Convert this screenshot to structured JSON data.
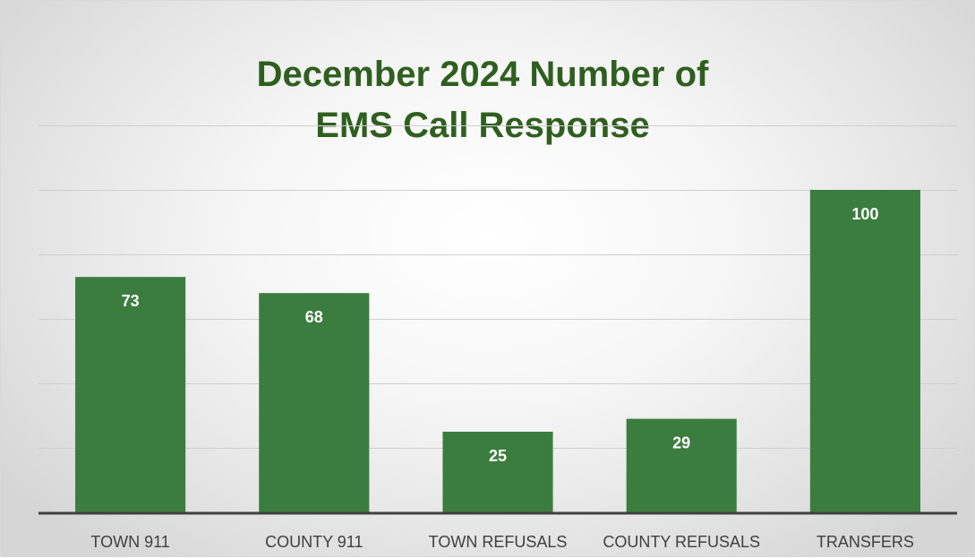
{
  "chart_data": {
    "type": "bar",
    "title": "December 2024 Number of EMS Call Response",
    "title_lines": [
      "December 2024 Number of",
      "EMS Call Response"
    ],
    "categories": [
      "TOWN 911",
      "COUNTY 911",
      "TOWN REFUSALS",
      "COUNTY REFUSALS",
      "TRANSFERS"
    ],
    "values": [
      73,
      68,
      25,
      29,
      100
    ],
    "xlabel": "",
    "ylabel": "",
    "ylim": [
      0,
      120
    ],
    "grid": true,
    "legend": "none",
    "y_axis_labels_visible": false,
    "data_labels": "inside-end",
    "colors": {
      "bar": "#3b7d3e",
      "title": "#2f5f1f",
      "grid": "#cfcfcf",
      "axis": "#404040",
      "data_label": "#ffffff"
    }
  }
}
